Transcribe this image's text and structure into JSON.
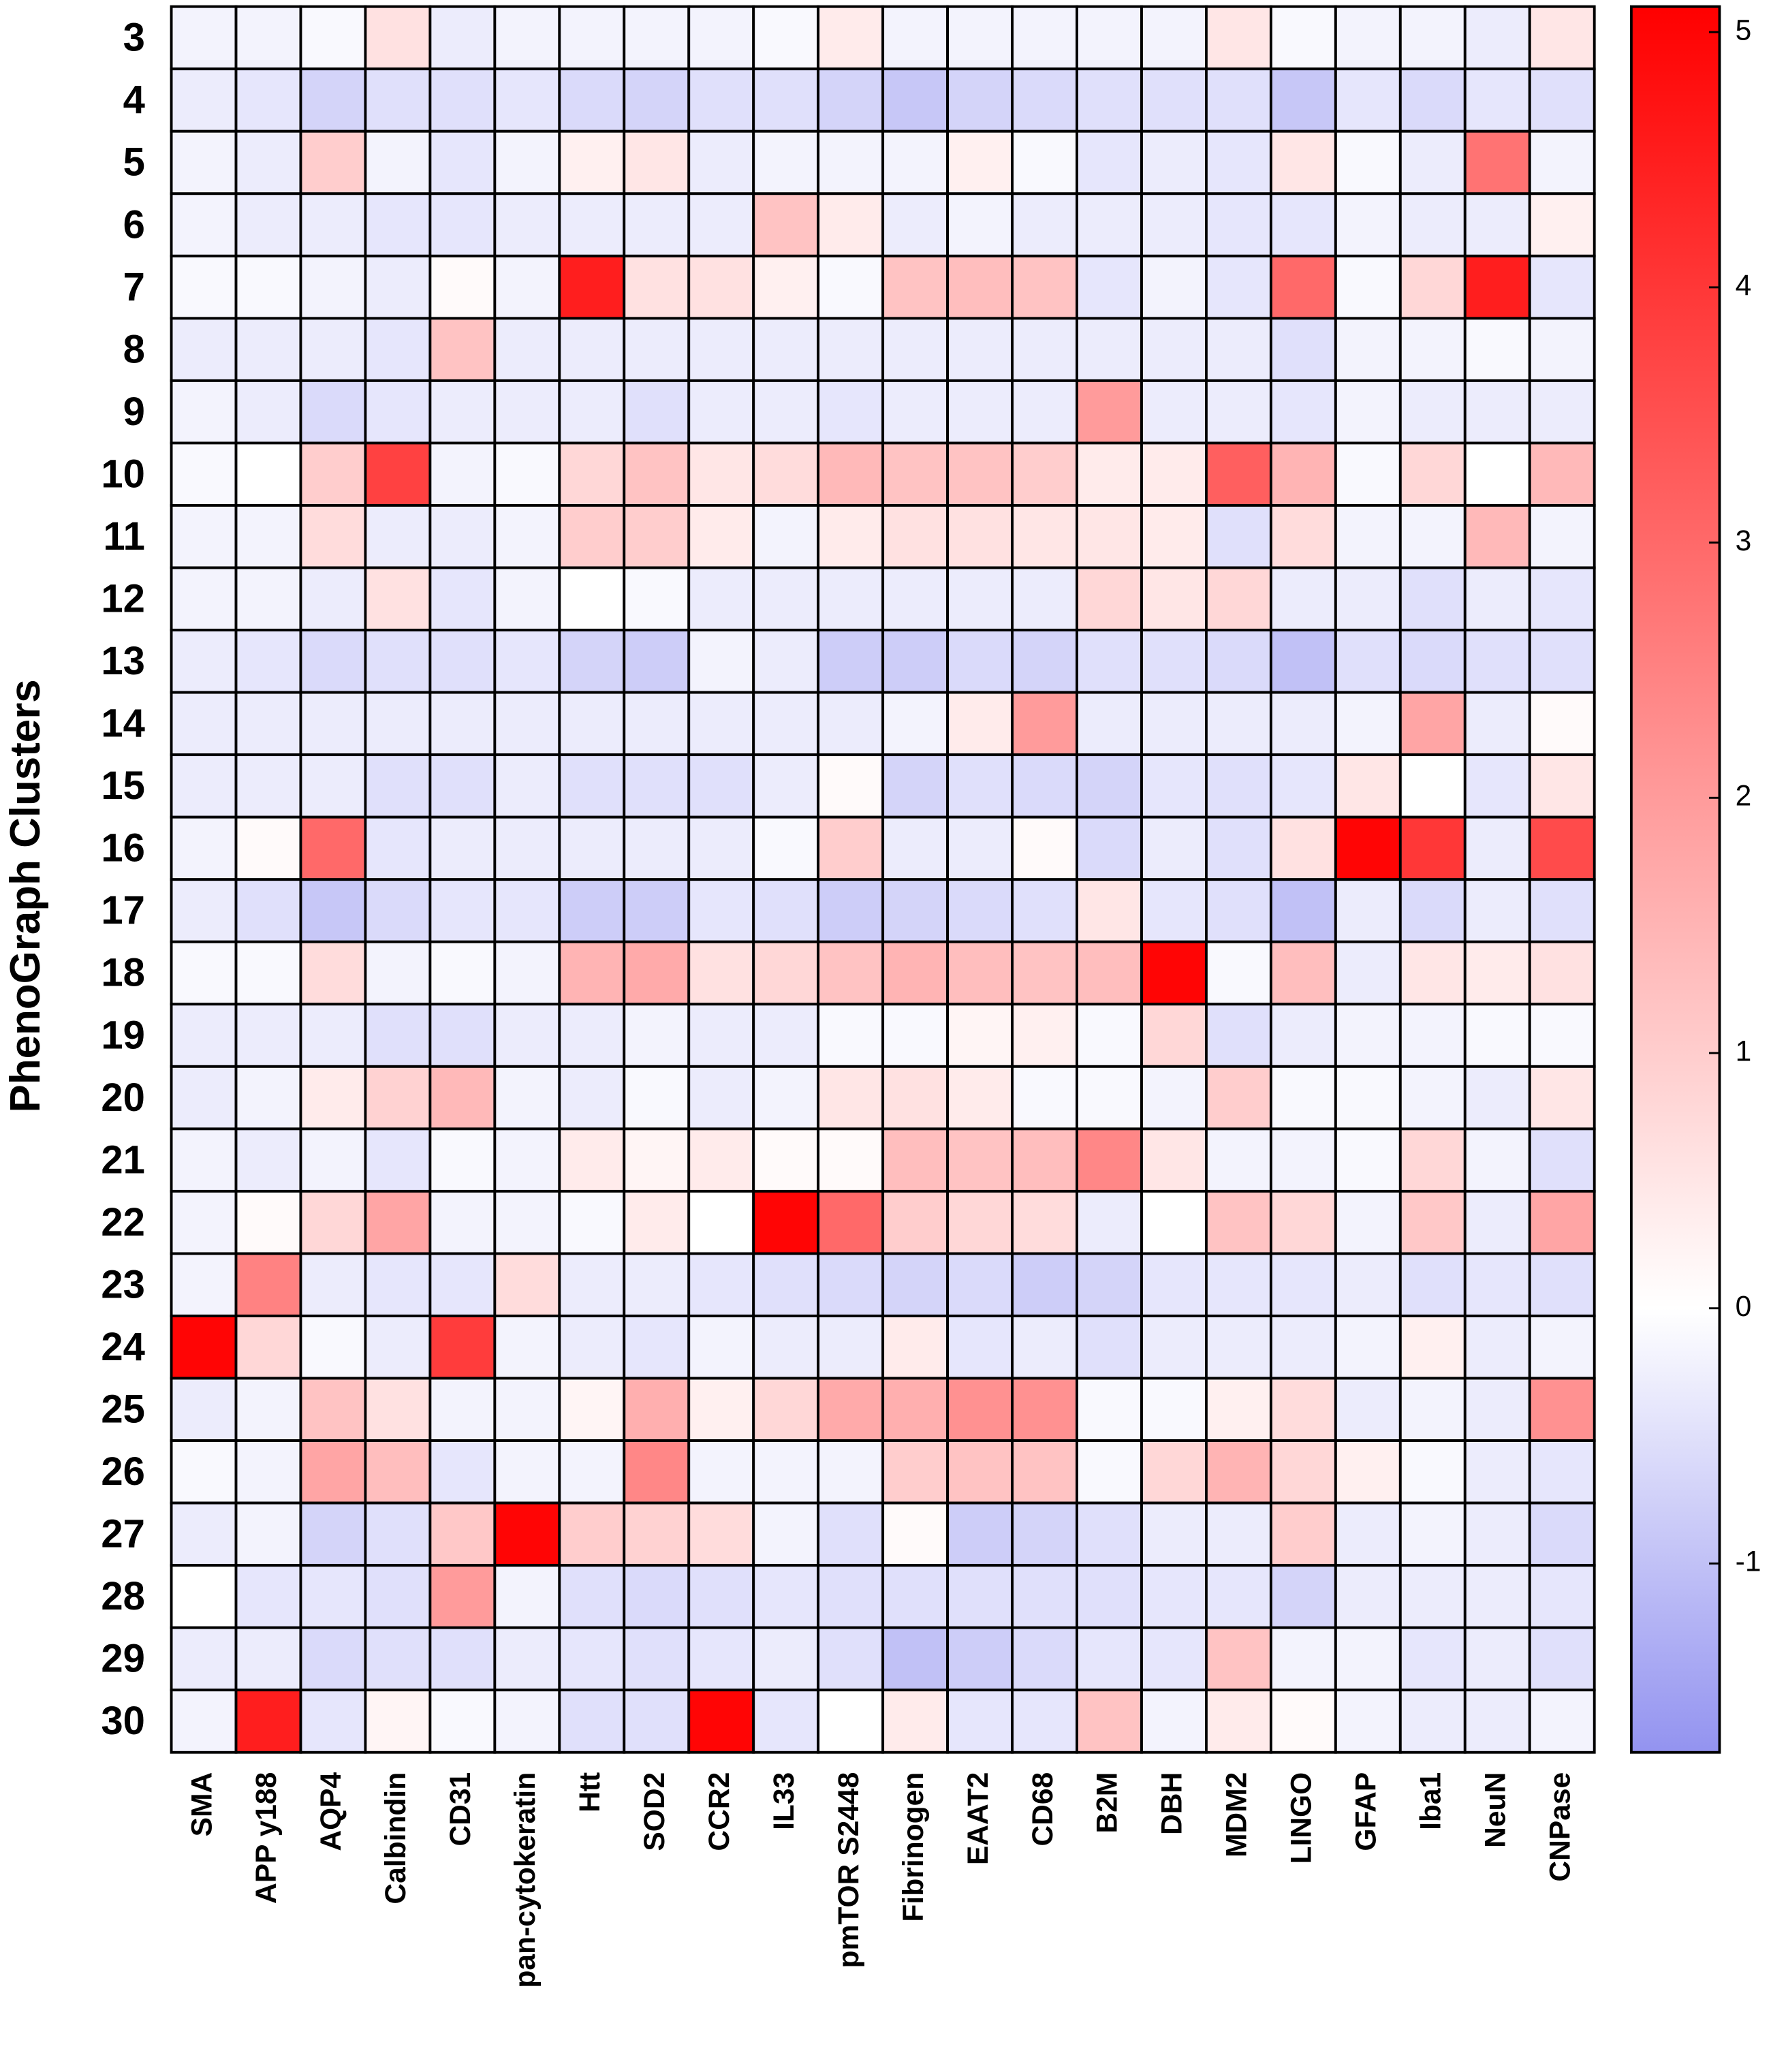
{
  "chart_data": {
    "type": "heatmap",
    "ylabel": "PhenoGraph Clusters",
    "x_categories": [
      "SMA",
      "APP y188",
      "AQP4",
      "Calbindin",
      "CD31",
      "pan-cytokeratin",
      "Htt",
      "SOD2",
      "CCR2",
      "IL33",
      "pmTOR  S2448",
      "Fibrinogen",
      "EAAT2",
      "CD68",
      "B2M",
      "DBH",
      "MDM2",
      "LINGO",
      "GFAP",
      "Iba1",
      "NeuN",
      "CNPase"
    ],
    "y_categories": [
      "3",
      "4",
      "5",
      "6",
      "7",
      "8",
      "9",
      "10",
      "11",
      "12",
      "13",
      "14",
      "15",
      "16",
      "17",
      "18",
      "19",
      "20",
      "21",
      "22",
      "23",
      "24",
      "25",
      "26",
      "27",
      "28",
      "29",
      "30"
    ],
    "values": [
      [
        -0.2,
        -0.2,
        -0.1,
        0.6,
        -0.3,
        -0.2,
        -0.2,
        -0.2,
        -0.2,
        -0.1,
        0.4,
        -0.2,
        -0.2,
        -0.2,
        -0.2,
        -0.2,
        0.5,
        -0.1,
        -0.2,
        -0.2,
        -0.3,
        0.5
      ],
      [
        -0.3,
        -0.4,
        -0.7,
        -0.5,
        -0.5,
        -0.4,
        -0.6,
        -0.7,
        -0.5,
        -0.5,
        -0.7,
        -0.9,
        -0.7,
        -0.6,
        -0.5,
        -0.5,
        -0.5,
        -0.9,
        -0.4,
        -0.6,
        -0.4,
        -0.5
      ],
      [
        -0.2,
        -0.3,
        1.0,
        -0.2,
        -0.4,
        -0.2,
        0.3,
        0.5,
        -0.3,
        -0.2,
        -0.2,
        -0.2,
        0.3,
        -0.1,
        -0.4,
        -0.3,
        -0.4,
        0.5,
        -0.1,
        -0.3,
        2.8,
        -0.2
      ],
      [
        -0.2,
        -0.3,
        -0.3,
        -0.4,
        -0.4,
        -0.3,
        -0.3,
        -0.3,
        -0.3,
        1.2,
        0.4,
        -0.3,
        -0.2,
        -0.3,
        -0.3,
        -0.3,
        -0.4,
        -0.4,
        -0.2,
        -0.3,
        -0.3,
        0.3
      ],
      [
        -0.1,
        -0.1,
        -0.2,
        -0.3,
        0.1,
        -0.2,
        4.5,
        0.6,
        0.6,
        0.3,
        -0.1,
        1.2,
        1.3,
        1.2,
        -0.4,
        -0.2,
        -0.4,
        3.0,
        -0.1,
        0.8,
        4.5,
        -0.4
      ],
      [
        -0.3,
        -0.3,
        -0.3,
        -0.4,
        1.2,
        -0.3,
        -0.3,
        -0.3,
        -0.3,
        -0.3,
        -0.3,
        -0.3,
        -0.3,
        -0.3,
        -0.3,
        -0.3,
        -0.3,
        -0.5,
        -0.2,
        -0.2,
        -0.1,
        -0.2
      ],
      [
        -0.2,
        -0.3,
        -0.6,
        -0.4,
        -0.3,
        -0.3,
        -0.3,
        -0.5,
        -0.3,
        -0.3,
        -0.4,
        -0.3,
        -0.3,
        -0.3,
        2.0,
        -0.3,
        -0.3,
        -0.4,
        -0.2,
        -0.3,
        -0.3,
        -0.3
      ],
      [
        -0.1,
        0.0,
        1.0,
        3.8,
        -0.2,
        -0.1,
        0.8,
        1.2,
        0.5,
        0.7,
        1.4,
        1.2,
        1.2,
        1.0,
        0.4,
        0.4,
        3.2,
        1.5,
        -0.1,
        0.8,
        0.0,
        1.4
      ],
      [
        -0.2,
        -0.2,
        0.7,
        -0.3,
        -0.3,
        -0.2,
        1.0,
        1.0,
        0.4,
        -0.2,
        0.4,
        0.6,
        0.6,
        0.5,
        0.5,
        0.4,
        -0.5,
        0.7,
        -0.2,
        -0.2,
        1.4,
        -0.2
      ],
      [
        -0.2,
        -0.2,
        -0.3,
        0.6,
        -0.4,
        -0.2,
        0.0,
        -0.1,
        -0.3,
        -0.3,
        -0.3,
        -0.3,
        -0.3,
        -0.3,
        0.8,
        0.5,
        0.8,
        -0.3,
        -0.3,
        -0.5,
        -0.3,
        -0.4
      ],
      [
        -0.3,
        -0.4,
        -0.6,
        -0.5,
        -0.5,
        -0.4,
        -0.7,
        -0.8,
        -0.2,
        -0.3,
        -0.8,
        -0.8,
        -0.6,
        -0.7,
        -0.5,
        -0.5,
        -0.6,
        -1.0,
        -0.5,
        -0.6,
        -0.5,
        -0.5
      ],
      [
        -0.3,
        -0.3,
        -0.3,
        -0.3,
        -0.3,
        -0.3,
        -0.3,
        -0.3,
        -0.3,
        -0.3,
        -0.3,
        -0.2,
        0.4,
        2.0,
        -0.3,
        -0.3,
        -0.3,
        -0.3,
        -0.2,
        1.8,
        -0.3,
        0.1
      ],
      [
        -0.3,
        -0.3,
        -0.3,
        -0.5,
        -0.5,
        -0.3,
        -0.5,
        -0.5,
        -0.5,
        -0.3,
        0.1,
        -0.7,
        -0.5,
        -0.6,
        -0.7,
        -0.4,
        -0.5,
        -0.4,
        0.5,
        0.0,
        -0.4,
        0.5
      ],
      [
        -0.2,
        0.1,
        3.0,
        -0.4,
        -0.3,
        -0.3,
        -0.3,
        -0.3,
        -0.3,
        -0.1,
        1.0,
        -0.3,
        -0.3,
        0.1,
        -0.6,
        -0.3,
        -0.5,
        0.6,
        5.0,
        4.0,
        -0.3,
        3.6
      ],
      [
        -0.3,
        -0.5,
        -0.9,
        -0.6,
        -0.4,
        -0.4,
        -0.8,
        -0.8,
        -0.4,
        -0.5,
        -0.8,
        -0.7,
        -0.6,
        -0.5,
        0.5,
        -0.4,
        -0.5,
        -1.0,
        -0.3,
        -0.6,
        -0.3,
        -0.5
      ],
      [
        -0.1,
        -0.1,
        0.7,
        -0.2,
        -0.1,
        -0.2,
        1.5,
        1.7,
        0.6,
        0.8,
        1.2,
        1.5,
        1.3,
        1.2,
        1.3,
        5.0,
        -0.1,
        1.3,
        -0.3,
        0.5,
        0.4,
        0.6
      ],
      [
        -0.3,
        -0.3,
        -0.3,
        -0.5,
        -0.5,
        -0.3,
        -0.3,
        -0.2,
        -0.3,
        -0.3,
        -0.1,
        -0.1,
        0.2,
        0.3,
        -0.1,
        0.8,
        -0.5,
        -0.3,
        -0.2,
        -0.2,
        -0.1,
        -0.1
      ],
      [
        -0.3,
        -0.2,
        0.4,
        0.9,
        1.4,
        -0.2,
        -0.3,
        -0.1,
        -0.3,
        -0.2,
        0.5,
        0.6,
        0.4,
        -0.1,
        -0.1,
        -0.2,
        1.0,
        -0.1,
        -0.1,
        -0.2,
        -0.3,
        0.5
      ],
      [
        -0.2,
        -0.3,
        -0.2,
        -0.4,
        -0.1,
        -0.2,
        0.4,
        0.2,
        0.4,
        0.1,
        0.1,
        1.3,
        1.2,
        1.3,
        2.4,
        0.5,
        -0.2,
        -0.2,
        -0.1,
        0.8,
        -0.2,
        -0.5
      ],
      [
        -0.2,
        0.1,
        0.8,
        1.8,
        -0.2,
        -0.2,
        -0.1,
        0.4,
        0.0,
        5.0,
        3.0,
        1.0,
        0.8,
        0.7,
        -0.3,
        0.0,
        1.2,
        0.8,
        -0.2,
        1.1,
        -0.3,
        1.8
      ],
      [
        -0.2,
        2.5,
        -0.3,
        -0.4,
        -0.4,
        0.7,
        -0.3,
        -0.3,
        -0.4,
        -0.5,
        -0.6,
        -0.7,
        -0.6,
        -0.8,
        -0.7,
        -0.4,
        -0.4,
        -0.4,
        -0.3,
        -0.5,
        -0.4,
        -0.5
      ],
      [
        5.0,
        0.8,
        -0.1,
        -0.3,
        3.9,
        -0.2,
        -0.3,
        -0.4,
        -0.2,
        -0.3,
        -0.3,
        0.4,
        -0.4,
        -0.3,
        -0.5,
        -0.3,
        -0.3,
        -0.3,
        -0.2,
        0.3,
        -0.3,
        -0.2
      ],
      [
        -0.3,
        -0.2,
        1.2,
        0.6,
        -0.2,
        -0.2,
        0.2,
        1.6,
        0.3,
        0.8,
        1.7,
        1.6,
        2.2,
        2.2,
        -0.1,
        -0.1,
        0.3,
        0.7,
        -0.3,
        -0.2,
        -0.3,
        2.2
      ],
      [
        -0.1,
        -0.2,
        1.8,
        1.3,
        -0.4,
        -0.2,
        -0.2,
        2.4,
        -0.2,
        -0.2,
        -0.2,
        1.0,
        1.2,
        1.2,
        -0.1,
        0.8,
        1.5,
        0.8,
        0.3,
        -0.1,
        -0.3,
        -0.4
      ],
      [
        -0.3,
        -0.2,
        -0.7,
        -0.5,
        1.1,
        5.0,
        1.0,
        0.9,
        0.7,
        -0.2,
        -0.5,
        0.1,
        -0.8,
        -0.7,
        -0.5,
        -0.3,
        -0.3,
        1.0,
        -0.3,
        -0.2,
        -0.3,
        -0.6
      ],
      [
        0.0,
        -0.4,
        -0.4,
        -0.5,
        2.0,
        -0.2,
        -0.5,
        -0.6,
        -0.5,
        -0.4,
        -0.5,
        -0.5,
        -0.5,
        -0.5,
        -0.5,
        -0.4,
        -0.4,
        -0.7,
        -0.3,
        -0.3,
        -0.3,
        -0.4
      ],
      [
        -0.3,
        -0.3,
        -0.6,
        -0.5,
        -0.5,
        -0.3,
        -0.4,
        -0.5,
        -0.4,
        -0.3,
        -0.5,
        -1.0,
        -0.8,
        -0.6,
        -0.4,
        -0.4,
        1.2,
        -0.2,
        -0.2,
        -0.4,
        -0.3,
        -0.5
      ],
      [
        -0.2,
        4.5,
        -0.4,
        0.2,
        -0.1,
        -0.2,
        -0.5,
        -0.5,
        5.0,
        -0.4,
        0.0,
        0.4,
        -0.4,
        -0.4,
        1.2,
        -0.2,
        0.4,
        0.1,
        -0.2,
        -0.3,
        -0.3,
        -0.2
      ]
    ],
    "zlim": [
      -1.74,
      5.1
    ],
    "zticks": [
      -1,
      0,
      1,
      2,
      3,
      4,
      5
    ],
    "colors": {
      "low": "#9393f0",
      "mid": "#ffffff",
      "high": "#ff0000"
    }
  }
}
